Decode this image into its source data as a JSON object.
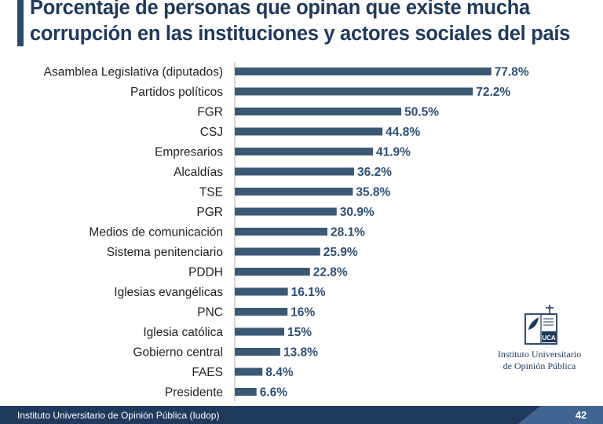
{
  "chart_data": {
    "type": "bar",
    "orientation": "horizontal",
    "title_lines": [
      "Porcentaje de personas que opinan que existe mucha",
      "corrupción en las instituciones y actores sociales del país"
    ],
    "categories": [
      "Asamblea Legislativa (diputados)",
      "Partidos políticos",
      "FGR",
      "CSJ",
      "Empresarios",
      "Alcaldías",
      "TSE",
      "PGR",
      "Medios de comunicación",
      "Sistema penitenciario",
      "PDDH",
      "Iglesias evangélicas",
      "PNC",
      "Iglesia católica",
      "Gobierno central",
      "FAES",
      "Presidente"
    ],
    "values": [
      77.8,
      72.2,
      50.5,
      44.8,
      41.9,
      36.2,
      35.8,
      30.9,
      28.1,
      25.9,
      22.8,
      16.1,
      16,
      15,
      13.8,
      8.4,
      6.6
    ],
    "value_labels": [
      "77.8%",
      "72.2%",
      "50.5%",
      "44.8%",
      "41.9%",
      "36.2%",
      "35.8%",
      "30.9%",
      "28.1%",
      "25.9%",
      "22.8%",
      "16.1%",
      "16%",
      "15%",
      "13.8%",
      "8.4%",
      "6.6%"
    ],
    "xlim": [
      0,
      100
    ],
    "grid": false,
    "bar_color": "#3b5874",
    "label_color": "#2c4f73"
  },
  "logo": {
    "line1": "Instituto Universitario",
    "line2": "de Opinión Pública",
    "mark_text": "UCA"
  },
  "footer": {
    "text": "Instituto Universitario de Opinión Pública (Iudop)",
    "page_number": "42"
  },
  "colors": {
    "title": "#1f3a5c",
    "footer_bg": "#1f3a5c",
    "footer_accent": "#3f6590"
  }
}
